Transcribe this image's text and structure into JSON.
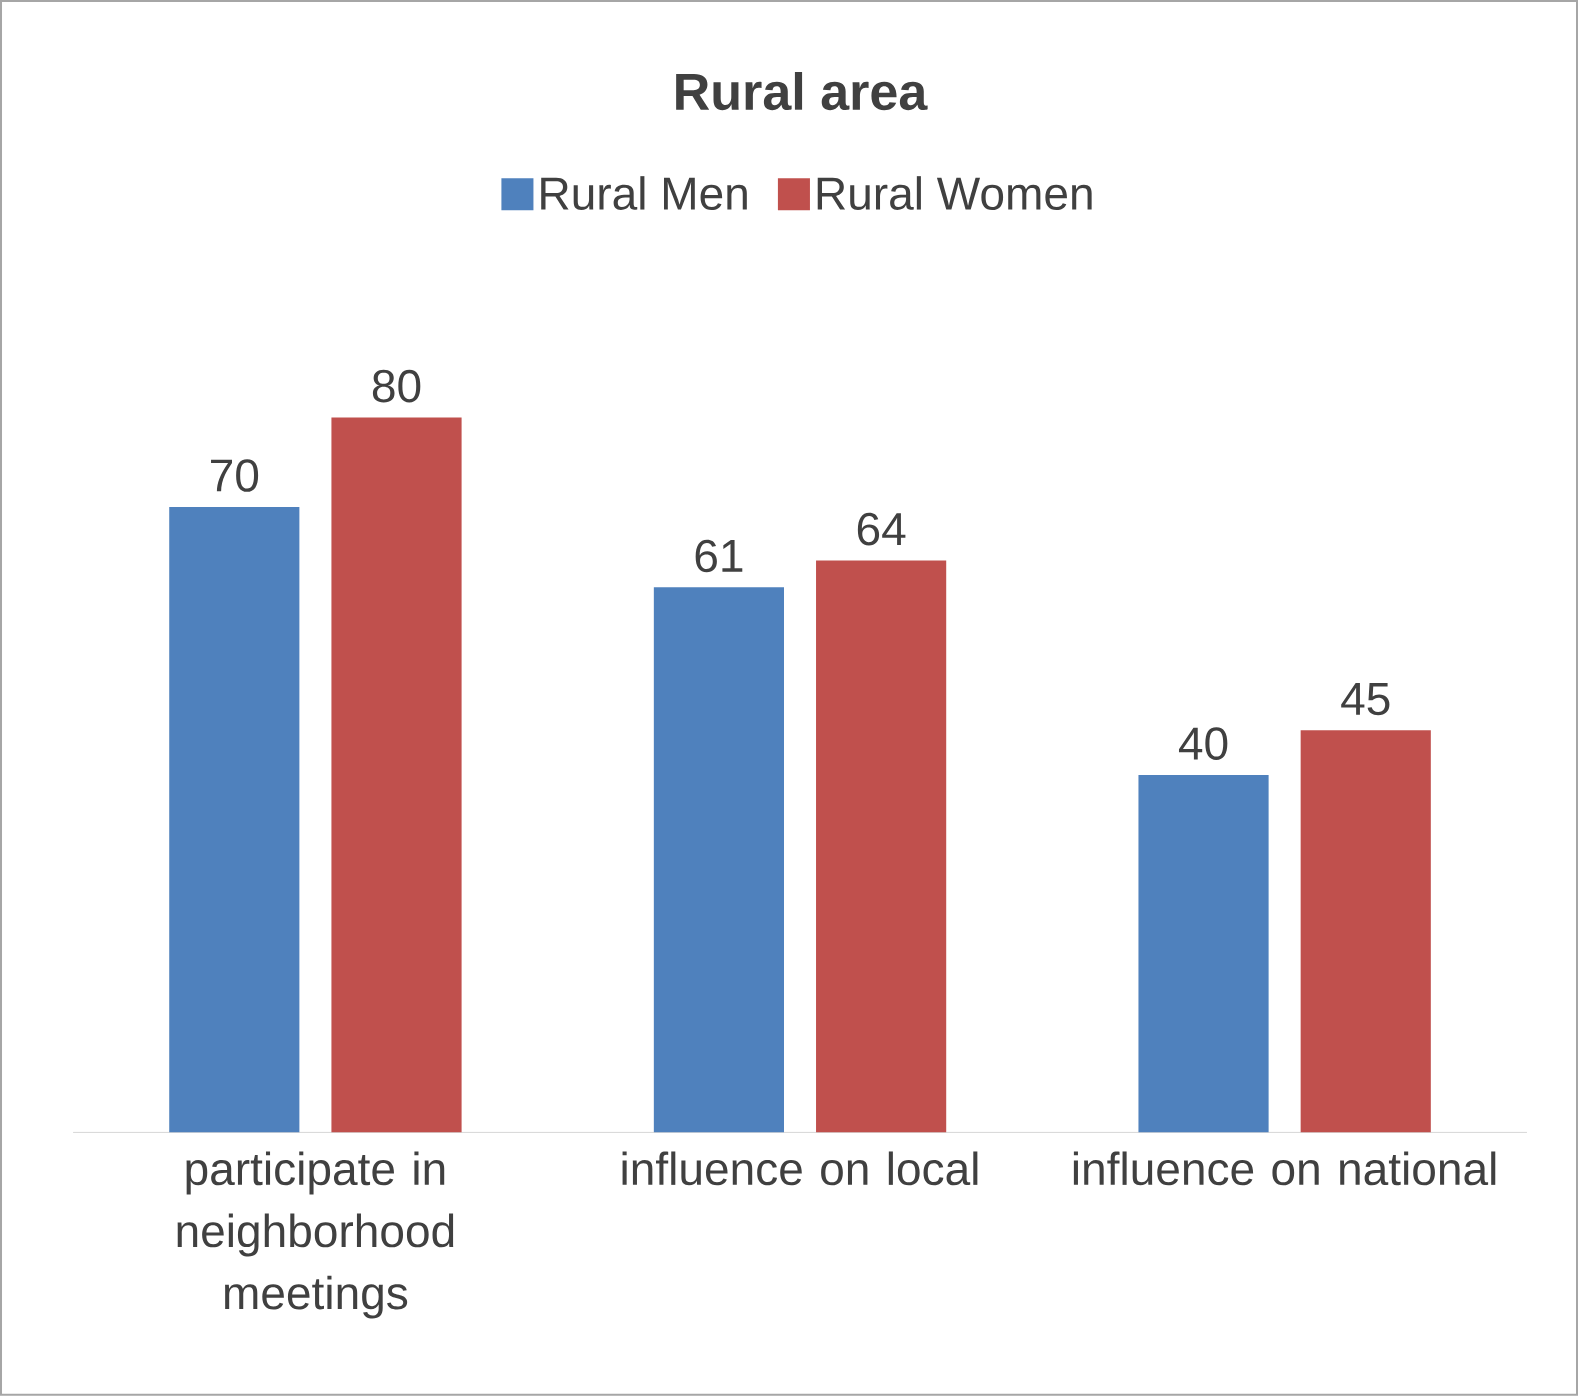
{
  "chart_data": {
    "type": "bar",
    "title": "Rural area",
    "categories": [
      "participate in neighborhood meetings",
      "influence on local",
      "influence on national"
    ],
    "series": [
      {
        "name": "Rural Men",
        "color": "#4f81bd",
        "values": [
          70,
          61,
          40
        ]
      },
      {
        "name": "Rural Women",
        "color": "#c0504d",
        "values": [
          80,
          64,
          45
        ]
      }
    ],
    "data_labels": true,
    "legend": "top"
  }
}
